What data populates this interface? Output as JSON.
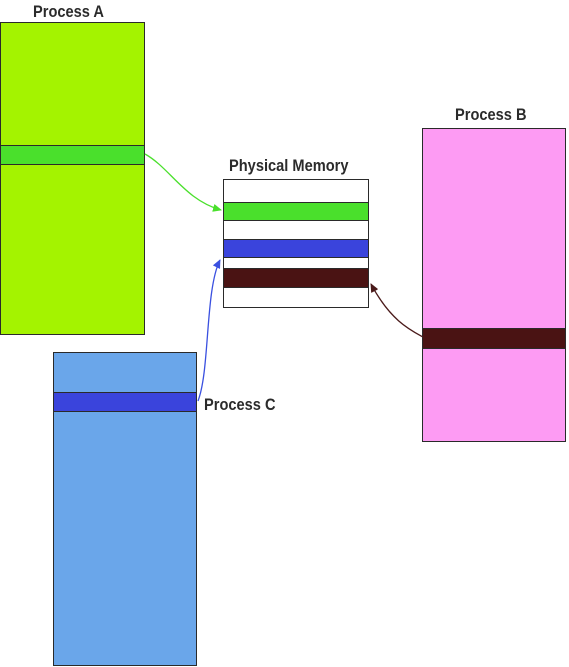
{
  "processes": {
    "a": {
      "label": "Process A",
      "color": "#a4f300",
      "band_color": "#4ae02c"
    },
    "b": {
      "label": "Process B",
      "color": "#fd9bf3",
      "band_color": "#4a1313"
    },
    "c": {
      "label": "Process C",
      "color": "#6aa6ea",
      "band_color": "#3a44dc"
    }
  },
  "memory": {
    "label": "Physical Memory",
    "segments": [
      {
        "owner": "Process A",
        "color": "#4ae02c"
      },
      {
        "owner": "Process C",
        "color": "#3a44dc"
      },
      {
        "owner": "Process B",
        "color": "#4a1313"
      }
    ]
  },
  "arrows": [
    {
      "from": "Process A",
      "to": "Physical Memory",
      "color": "#4ae02c"
    },
    {
      "from": "Process C",
      "to": "Physical Memory",
      "color": "#3a50e0"
    },
    {
      "from": "Process B",
      "to": "Physical Memory",
      "color": "#4a1a1a"
    }
  ]
}
